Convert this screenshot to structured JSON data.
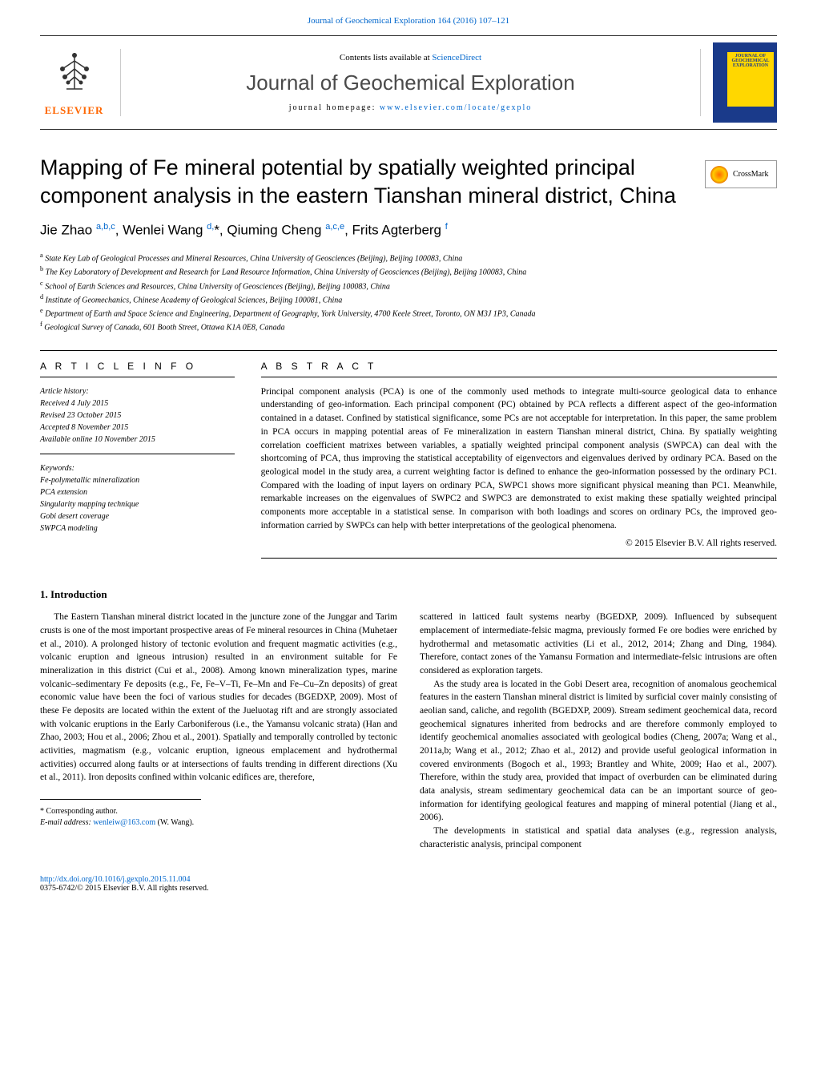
{
  "journal_ref": "Journal of Geochemical Exploration 164 (2016) 107–121",
  "contents_line_prefix": "Contents lists available at ",
  "contents_line_link": "ScienceDirect",
  "journal_name": "Journal of Geochemical Exploration",
  "homepage_prefix": "journal homepage: ",
  "homepage_url": "www.elsevier.com/locate/gexplo",
  "elsevier": "ELSEVIER",
  "cover_text": "JOURNAL OF GEOCHEMICAL EXPLORATION",
  "crossmark": "CrossMark",
  "article_title": "Mapping of Fe mineral potential by spatially weighted principal component analysis in the eastern Tianshan mineral district, China",
  "authors_html": "Jie Zhao <sup>a,b,c</sup>, Wenlei Wang <sup>d,</sup>*, Qiuming Cheng <sup>a,c,e</sup>, Frits Agterberg <sup>f</sup>",
  "affiliations": [
    "a State Key Lab of Geological Processes and Mineral Resources, China University of Geosciences (Beijing), Beijing 100083, China",
    "b The Key Laboratory of Development and Research for Land Resource Information, China University of Geosciences (Beijing), Beijing 100083, China",
    "c School of Earth Sciences and Resources, China University of Geosciences (Beijing), Beijing 100083, China",
    "d Institute of Geomechanics, Chinese Academy of Geological Sciences, Beijing 100081, China",
    "e Department of Earth and Space Science and Engineering, Department of Geography, York University, 4700 Keele Street, Toronto, ON M3J 1P3, Canada",
    "f Geological Survey of Canada, 601 Booth Street, Ottawa K1A 0E8, Canada"
  ],
  "article_info_heading": "A R T I C L E   I N F O",
  "abstract_heading": "A B S T R A C T",
  "history_title": "Article history:",
  "history": [
    "Received 4 July 2015",
    "Revised 23 October 2015",
    "Accepted 8 November 2015",
    "Available online 10 November 2015"
  ],
  "keywords_title": "Keywords:",
  "keywords": [
    "Fe-polymetallic mineralization",
    "PCA extension",
    "Singularity mapping technique",
    "Gobi desert coverage",
    "SWPCA modeling"
  ],
  "abstract_text": "Principal component analysis (PCA) is one of the commonly used methods to integrate multi-source geological data to enhance understanding of geo-information. Each principal component (PC) obtained by PCA reflects a different aspect of the geo-information contained in a dataset. Confined by statistical significance, some PCs are not acceptable for interpretation. In this paper, the same problem in PCA occurs in mapping potential areas of Fe mineralization in eastern Tianshan mineral district, China. By spatially weighting correlation coefficient matrixes between variables, a spatially weighted principal component analysis (SWPCA) can deal with the shortcoming of PCA, thus improving the statistical acceptability of eigenvectors and eigenvalues derived by ordinary PCA. Based on the geological model in the study area, a current weighting factor is defined to enhance the geo-information possessed by the ordinary PC1. Compared with the loading of input layers on ordinary PCA, SWPC1 shows more significant physical meaning than PC1. Meanwhile, remarkable increases on the eigenvalues of SWPC2 and SWPC3 are demonstrated to exist making these spatially weighted principal components more acceptable in a statistical sense. In comparison with both loadings and scores on ordinary PCs, the improved geo-information carried by SWPCs can help with better interpretations of the geological phenomena.",
  "copyright": "© 2015 Elsevier B.V. All rights reserved.",
  "intro_heading": "1. Introduction",
  "body": {
    "p1": "The Eastern Tianshan mineral district located in the juncture zone of the Junggar and Tarim crusts is one of the most important prospective areas of Fe mineral resources in China (Muhetaer et al., 2010). A prolonged history of tectonic evolution and frequent magmatic activities (e.g., volcanic eruption and igneous intrusion) resulted in an environment suitable for Fe mineralization in this district (Cui et al., 2008). Among known mineralization types, marine volcanic–sedimentary Fe deposits (e.g., Fe, Fe–V–Ti, Fe–Mn and Fe–Cu–Zn deposits) of great economic value have been the foci of various studies for decades (BGEDXP, 2009). Most of these Fe deposits are located within the extent of the Jueluotag rift and are strongly associated with volcanic eruptions in the Early Carboniferous (i.e., the Yamansu volcanic strata) (Han and Zhao, 2003; Hou et al., 2006; Zhou et al., 2001). Spatially and temporally controlled by tectonic activities, magmatism (e.g., volcanic eruption, igneous emplacement and hydrothermal activities) occurred along faults or at intersections of faults trending in different directions (Xu et al., 2011). Iron deposits confined within volcanic edifices are, therefore,",
    "p2": "scattered in latticed fault systems nearby (BGEDXP, 2009). Influenced by subsequent emplacement of intermediate-felsic magma, previously formed Fe ore bodies were enriched by hydrothermal and metasomatic activities (Li et al., 2012, 2014; Zhang and Ding, 1984). Therefore, contact zones of the Yamansu Formation and intermediate-felsic intrusions are often considered as exploration targets.",
    "p3": "As the study area is located in the Gobi Desert area, recognition of anomalous geochemical features in the eastern Tianshan mineral district is limited by surficial cover mainly consisting of aeolian sand, caliche, and regolith (BGEDXP, 2009). Stream sediment geochemical data, record geochemical signatures inherited from bedrocks and are therefore commonly employed to identify geochemical anomalies associated with geological bodies (Cheng, 2007a; Wang et al., 2011a,b; Wang et al., 2012; Zhao et al., 2012) and provide useful geological information in covered environments (Bogoch et al., 1993; Brantley and White, 2009; Hao et al., 2007). Therefore, within the study area, provided that impact of overburden can be eliminated during data analysis, stream sedimentary geochemical data can be an important source of geo-information for identifying geological features and mapping of mineral potential (Jiang et al., 2006).",
    "p4": "The developments in statistical and spatial data analyses (e.g., regression analysis, characteristic analysis, principal component"
  },
  "corresponding": "* Corresponding author.",
  "email_prefix": "E-mail address: ",
  "email": "wenleiw@163.com",
  "email_suffix": " (W. Wang).",
  "doi": "http://dx.doi.org/10.1016/j.gexplo.2015.11.004",
  "issn": "0375-6742/© 2015 Elsevier B.V. All rights reserved."
}
